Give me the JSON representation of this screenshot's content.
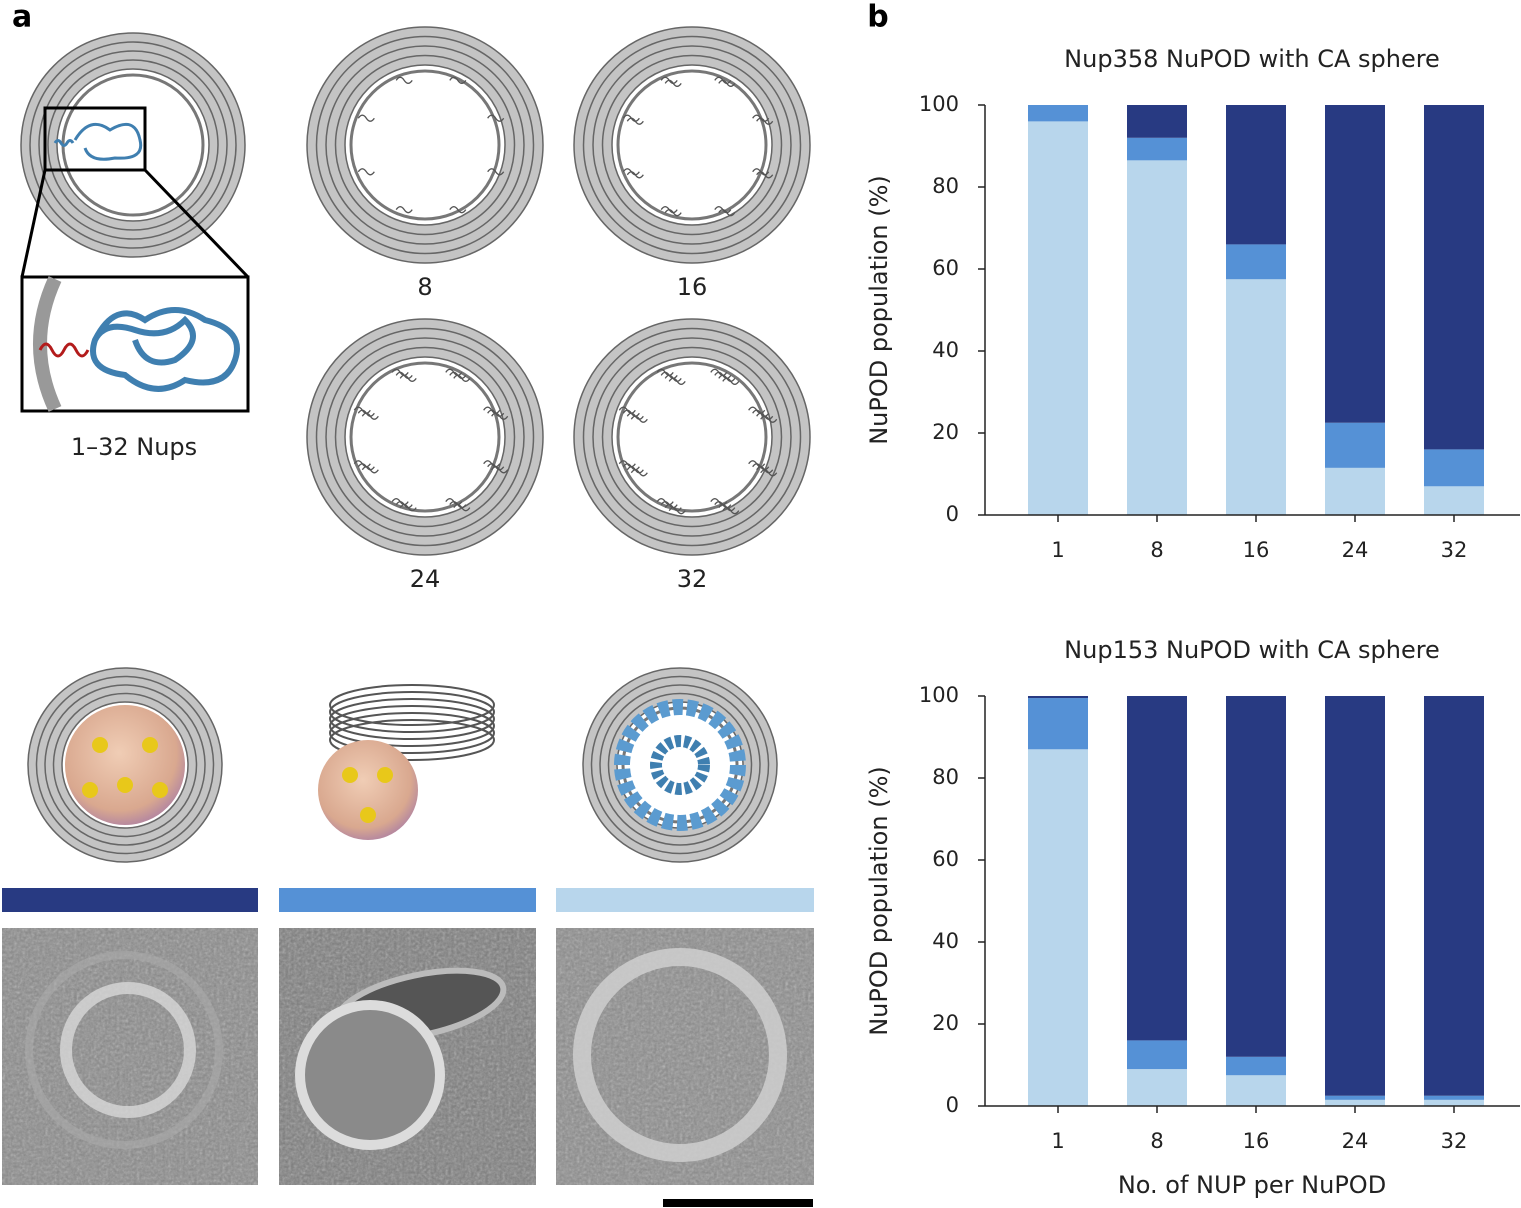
{
  "figure": {
    "panel_labels": [
      "a",
      "b"
    ],
    "schematic_counts": [
      "8",
      "16",
      "24",
      "32"
    ],
    "caption": "1–32 Nups"
  },
  "chart_data": [
    {
      "type": "stacked_bar",
      "title": "Nup358 NuPOD with CA sphere",
      "ylabel": "NuPOD population (%)",
      "categories": [
        "1",
        "8",
        "16",
        "24",
        "32"
      ],
      "series": [
        {
          "color": "#b8d6ec",
          "values": [
            96,
            86.5,
            57.5,
            11.5,
            7
          ]
        },
        {
          "color": "#5591d6",
          "values": [
            4,
            5.5,
            8.5,
            11,
            9
          ]
        },
        {
          "color": "#283a82",
          "values": [
            0,
            8,
            34,
            77.5,
            84
          ]
        }
      ],
      "ylim": [
        0,
        100
      ],
      "yticks": [
        0,
        20,
        40,
        60,
        80,
        100
      ]
    },
    {
      "type": "stacked_bar",
      "title": "Nup153 NuPOD with CA sphere",
      "ylabel": "NuPOD population (%)",
      "xlabel": "No. of NUP per NuPOD",
      "categories": [
        "1",
        "8",
        "16",
        "24",
        "32"
      ],
      "series": [
        {
          "color": "#b8d6ec",
          "values": [
            87,
            9,
            7.5,
            1.5,
            1.5
          ]
        },
        {
          "color": "#5591d6",
          "values": [
            12.5,
            7,
            4.5,
            1,
            1
          ]
        },
        {
          "color": "#283a82",
          "values": [
            0.5,
            84,
            88,
            97.5,
            97.5
          ]
        }
      ],
      "ylim": [
        0,
        100
      ],
      "yticks": [
        0,
        20,
        40,
        60,
        80,
        100
      ]
    }
  ]
}
